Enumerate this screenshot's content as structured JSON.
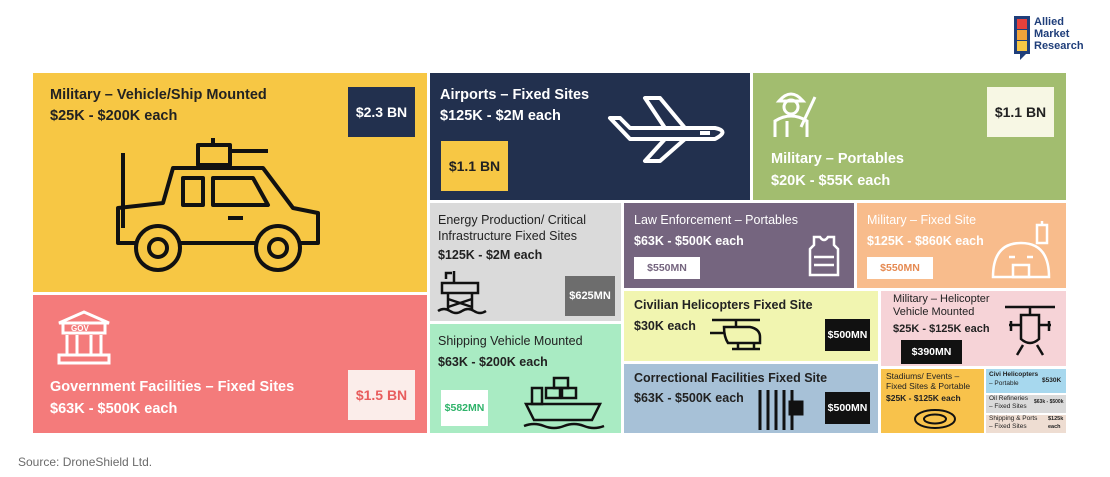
{
  "logo": {
    "line1": "Allied",
    "line2": "Market",
    "line3": "Research"
  },
  "source": "Source: DroneShield Ltd.",
  "chart_data": {
    "type": "treemap",
    "unit": "BN / MN",
    "items": [
      {
        "key": "mil_vehicle",
        "name": "Military – Vehicle/Ship Mounted",
        "price": "$25K - $200K each",
        "value_label": "$2.3 BN",
        "value": 2300,
        "color": "#F7C744"
      },
      {
        "key": "airports",
        "name": "Airports – Fixed Sites",
        "price": "$125K - $2M each",
        "value_label": "$1.1 BN",
        "value": 1100,
        "color": "#22304E"
      },
      {
        "key": "mil_portables",
        "name": "Military – Portables",
        "price": "$20K - $55K each",
        "value_label": "$1.1 BN",
        "value": 1100,
        "color": "#A2BD6F"
      },
      {
        "key": "government",
        "name": "Government Facilities  – Fixed Sites",
        "price": "$63K - $500K each",
        "value_label": "$1.5 BN",
        "value": 1500,
        "color": "#F47B7B"
      },
      {
        "key": "energy",
        "name": "Energy Production/ Critical",
        "name2": "Infrastructure Fixed Sites",
        "price": "$125K - $2M each",
        "value_label": "$625MN",
        "value": 625,
        "color": "#DADADA"
      },
      {
        "key": "law",
        "name": "Law Enforcement – Portables",
        "price": "$63K - $500K each",
        "value_label": "$550MN",
        "value": 550,
        "color": "#75657F"
      },
      {
        "key": "mil_fixed",
        "name": "Military – Fixed Site",
        "price": "$125K - $860K each",
        "value_label": "$550MN",
        "value": 550,
        "color": "#F8BC8C"
      },
      {
        "key": "shipping",
        "name": "Shipping Vehicle Mounted",
        "price": "$63K - $200K each",
        "value_label": "$582MN",
        "value": 582,
        "color": "#A9EBC3"
      },
      {
        "key": "civ_heli",
        "name": "Civilian Helicopters Fixed Site",
        "price": "$30K each",
        "value_label": "$500MN",
        "value": 500,
        "color": "#F1F5B0"
      },
      {
        "key": "mil_heli",
        "name": "Military – Helicopter",
        "name2": "Vehicle Mounted",
        "price": "$25K - $125K each",
        "value_label": "$390MN",
        "value": 390,
        "color": "#F6D3D7"
      },
      {
        "key": "correctional",
        "name": "Correctional Facilities Fixed Site",
        "price": "$63K - $500K each",
        "value_label": "$500MN",
        "value": 500,
        "color": "#A7C1D7"
      },
      {
        "key": "stadiums",
        "name": "Stadiums/ Events –",
        "name2": "Fixed Sites & Portable",
        "price": "$25K - $125K each",
        "value_label": "",
        "value": null,
        "color": "#F8C24B"
      },
      {
        "key": "civi_heli_port",
        "name": "Civi Helicopters",
        "name2": "– Portable",
        "price": "$530K",
        "value_label": "",
        "value": null,
        "color": "#A7D8EE"
      },
      {
        "key": "oil",
        "name": "Oil Refineries",
        "name2": "– Fixed Sites",
        "price": "$63k - $500k",
        "value_label": "",
        "value": null,
        "color": "#DADADA"
      },
      {
        "key": "ports",
        "name": "Shipping & Ports",
        "name2": "– Fixed Sites",
        "price": "$125k",
        "price2": "each",
        "value_label": "",
        "value": null,
        "color": "#EEDDD2"
      }
    ]
  }
}
